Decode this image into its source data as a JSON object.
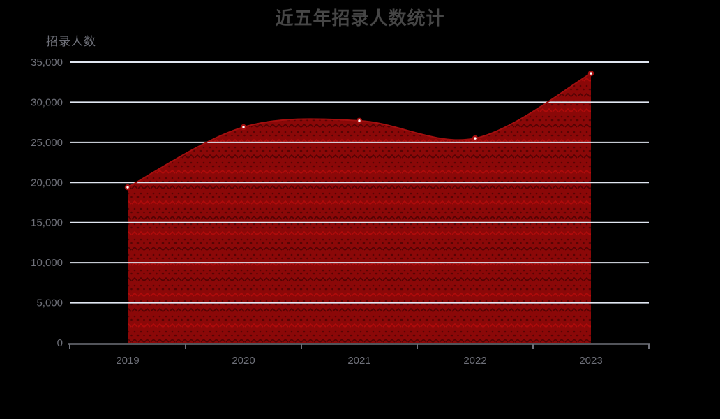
{
  "chart_data": {
    "type": "area",
    "title": "近五年招录人数统计",
    "ylabel": "招录人数",
    "xlabel": "",
    "categories": [
      "2019",
      "2020",
      "2021",
      "2022",
      "2023"
    ],
    "series": [
      {
        "name": "招录人数",
        "values": [
          19400,
          26900,
          27700,
          25500,
          33600
        ]
      }
    ],
    "ylim": [
      0,
      35000
    ],
    "ytick_step": 5000,
    "yticks": [
      "0",
      "5,000",
      "10,000",
      "15,000",
      "20,000",
      "25,000",
      "30,000",
      "35,000"
    ],
    "grid": true,
    "smooth": true,
    "legend_position": "none",
    "style": {
      "background": "#000000",
      "title_color": "#464646",
      "axis_label_color": "#6E7079",
      "axis_line_color": "#6E7079",
      "gridline_color": "#E0E6F1",
      "area_base_color": "#8B0808",
      "decal_dark_color": "#2B0000",
      "decal_bright_color": "#E01010",
      "line_color": "#A40F0F",
      "marker_fill_color": "#A40F0F",
      "marker_center_color": "#FFFFFF"
    }
  }
}
